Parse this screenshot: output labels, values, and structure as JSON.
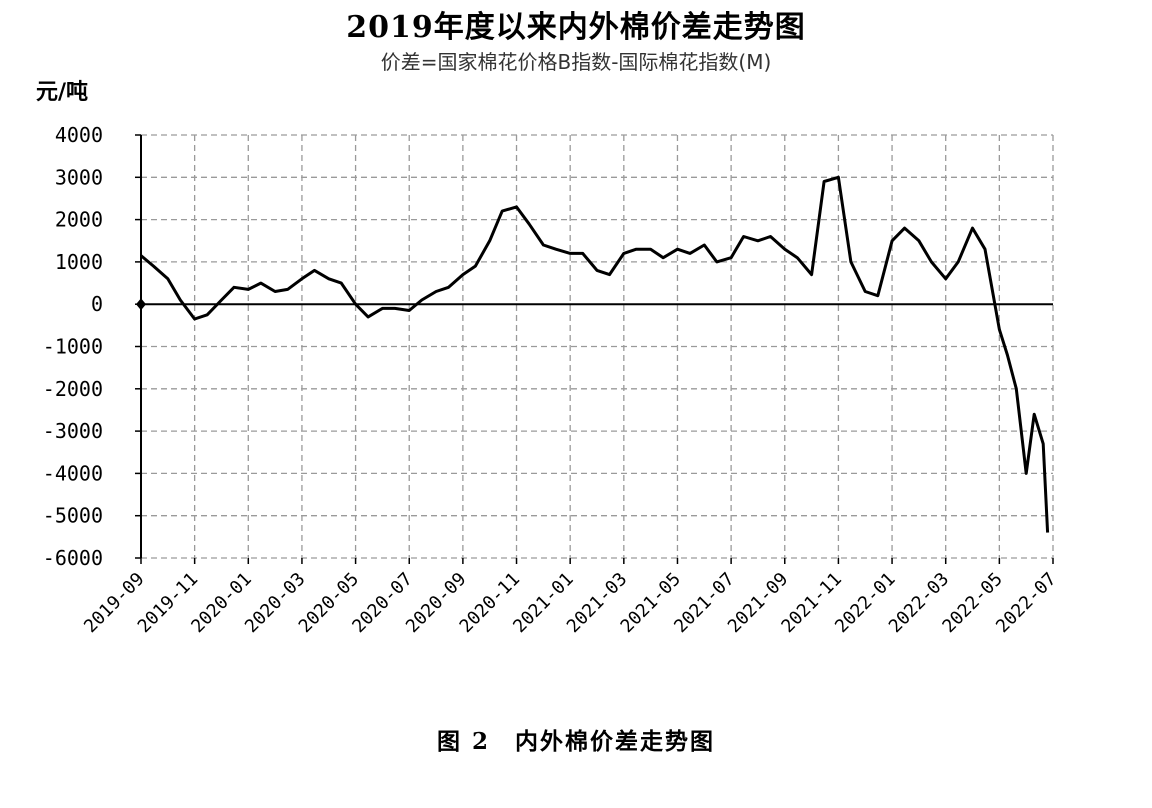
{
  "chart_data": {
    "type": "line",
    "title": "2019年度以来内外棉价差走势图",
    "subtitle": "价差=国家棉花价格B指数-国际棉花指数(M)",
    "ylabel": "元/吨",
    "caption": "图 2　内外棉价差走势图",
    "ylim": [
      -6000,
      4000
    ],
    "yticks": [
      4000,
      3000,
      2000,
      1000,
      0,
      -1000,
      -2000,
      -3000,
      -4000,
      -5000,
      -6000
    ],
    "xticks": [
      "2019-09",
      "2019-11",
      "2020-01",
      "2020-03",
      "2020-05",
      "2020-07",
      "2020-09",
      "2020-11",
      "2021-01",
      "2021-03",
      "2021-05",
      "2021-07",
      "2021-09",
      "2021-11",
      "2022-01",
      "2022-03",
      "2022-05",
      "2022-07"
    ],
    "grid": true,
    "line_color": "#000000",
    "series": [
      {
        "x": [
          "2019-09-01",
          "2019-09-15",
          "2019-10-01",
          "2019-10-15",
          "2019-11-01",
          "2019-11-15",
          "2019-12-01",
          "2019-12-15",
          "2020-01-01",
          "2020-01-15",
          "2020-02-01",
          "2020-02-15",
          "2020-03-01",
          "2020-03-15",
          "2020-04-01",
          "2020-04-15",
          "2020-05-01",
          "2020-05-15",
          "2020-06-01",
          "2020-06-15",
          "2020-07-01",
          "2020-07-15",
          "2020-08-01",
          "2020-08-15",
          "2020-09-01",
          "2020-09-15",
          "2020-10-01",
          "2020-10-15",
          "2020-11-01",
          "2020-11-15",
          "2020-12-01",
          "2020-12-15",
          "2021-01-01",
          "2021-01-15",
          "2021-02-01",
          "2021-02-15",
          "2021-03-01",
          "2021-03-15",
          "2021-04-01",
          "2021-04-15",
          "2021-05-01",
          "2021-05-15",
          "2021-06-01",
          "2021-06-15",
          "2021-07-01",
          "2021-07-15",
          "2021-08-01",
          "2021-08-15",
          "2021-09-01",
          "2021-09-15",
          "2021-10-01",
          "2021-10-15",
          "2021-11-01",
          "2021-11-15",
          "2021-12-01",
          "2021-12-15",
          "2022-01-01",
          "2022-01-15",
          "2022-02-01",
          "2022-02-15",
          "2022-03-01",
          "2022-03-15",
          "2022-04-01",
          "2022-04-15",
          "2022-05-01",
          "2022-05-10",
          "2022-05-20",
          "2022-06-01",
          "2022-06-10",
          "2022-06-20",
          "2022-06-25"
        ],
        "values": [
          1150,
          900,
          600,
          100,
          -350,
          -250,
          100,
          400,
          350,
          500,
          300,
          350,
          600,
          800,
          600,
          500,
          0,
          -300,
          -100,
          -100,
          -150,
          100,
          300,
          400,
          700,
          900,
          1500,
          2200,
          2300,
          1900,
          1400,
          1300,
          1200,
          1200,
          800,
          700,
          1200,
          1300,
          1300,
          1100,
          1300,
          1200,
          1400,
          1000,
          1100,
          1600,
          1500,
          1600,
          1300,
          1100,
          700,
          2900,
          3000,
          1000,
          300,
          200,
          1500,
          1800,
          1500,
          1000,
          600,
          1000,
          1800,
          1300,
          -600,
          -1200,
          -2000,
          -4000,
          -2600,
          -3300,
          -5400
        ]
      }
    ]
  }
}
